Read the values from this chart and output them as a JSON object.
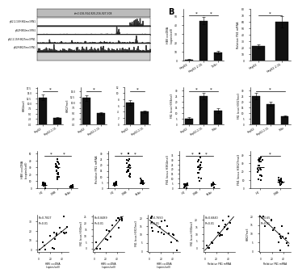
{
  "genome_track_title": "chr2:216,914,920-216,927,308",
  "track_labels": [
    "pG2.2.15/H3K4me3/FN1",
    "pG2/H3K4me3/FN1",
    "pG2.2.15/H3K27me3/FN1",
    "pG2/H3K27me3/FN1"
  ],
  "bar_color": "#111111",
  "panel_B_label": "B",
  "hbv_cats": [
    "HepG2",
    "HepG2.2.15",
    "Telbi"
  ],
  "hbv_vals": [
    1,
    45,
    9
  ],
  "hbv_errs": [
    0.3,
    4,
    1.5
  ],
  "fn1_cats": [
    "HepG2",
    "HepG2.2.15"
  ],
  "fn1_vals": [
    22,
    60
  ],
  "fn1_errs": [
    3,
    9
  ],
  "h3k4_cats_A": [
    "HepG2",
    "HepG2.2.15"
  ],
  "h3k4_vals_A": [
    13,
    3
  ],
  "h3k4_errs_A": [
    1.5,
    0.5
  ],
  "h3k27_cats_A": [
    "HepG2",
    "HepG2.2.15"
  ],
  "h3k27_vals_A": [
    12,
    4
  ],
  "h3k27_errs_A": [
    1.2,
    0.8
  ],
  "fn1h3k4_cats": [
    "HepG2",
    "HepG2.2.15",
    "Telbi"
  ],
  "fn1h3k4_vals": [
    5,
    25,
    12
  ],
  "fn1h3k4_errs": [
    1,
    3,
    2
  ],
  "fn1h3k27_cats": [
    "HepG2",
    "HepG2.2.15",
    "Telbi"
  ],
  "fn1h3k27_vals": [
    25,
    18,
    7
  ],
  "fn1h3k27_errs": [
    3,
    2,
    1
  ],
  "dot_cats1": [
    "HC",
    "CHB",
    "Telbi"
  ],
  "dot_means1": [
    5,
    30,
    2
  ],
  "dot_cats2": [
    "HC",
    "CHB",
    "Telbi"
  ],
  "dot_means2": [
    3,
    18,
    5
  ],
  "dot_cats3": [
    "HC",
    "CHB",
    "Telbi"
  ],
  "dot_means3": [
    3,
    22,
    4
  ],
  "dot_cats4": [
    "HC",
    "CHB"
  ],
  "dot_means4": [
    25,
    8
  ],
  "sc1_R": "R=0.7827",
  "sc1_P": "P<0.01",
  "sc1_pos": true,
  "sc2_R": "R=0.8489",
  "sc2_P": "P<0.01",
  "sc2_pos": true,
  "sc3_R": "R=0.7650",
  "sc3_P": "P<0.01",
  "sc3_pos": false,
  "sc4_R": "R=0.6840",
  "sc4_P": "P<0.01",
  "sc4_pos": true,
  "sc5_R": "R=0.65",
  "sc5_P": "P<0.01",
  "sc5_pos": false
}
